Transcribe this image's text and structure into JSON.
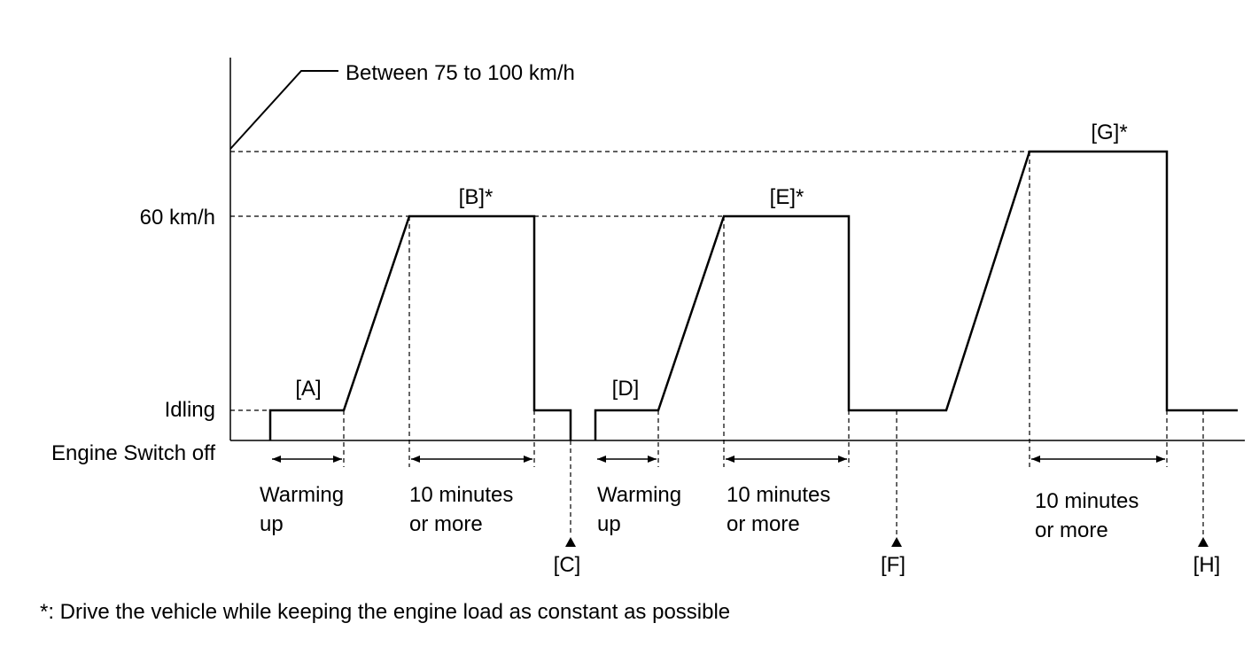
{
  "diagram": {
    "levels": {
      "high": "Between 75 to 100 km/h",
      "mid": "60 km/h",
      "idle": "Idling",
      "off": "Engine Switch off"
    },
    "step_labels": {
      "A": "[A]",
      "B": "[B]*",
      "C": "[C]",
      "D": "[D]",
      "E": "[E]*",
      "F": "[F]",
      "G": "[G]*",
      "H": "[H]"
    },
    "durations": [
      {
        "line1": "Warming",
        "line2": "up"
      },
      {
        "line1": "10 minutes",
        "line2": "or more"
      },
      {
        "line1": "Warming",
        "line2": "up"
      },
      {
        "line1": "10 minutes",
        "line2": "or more"
      },
      {
        "line1": "10 minutes",
        "line2": "or more"
      }
    ],
    "footnote": "*: Drive the vehicle while keeping the engine load as constant as possible"
  }
}
